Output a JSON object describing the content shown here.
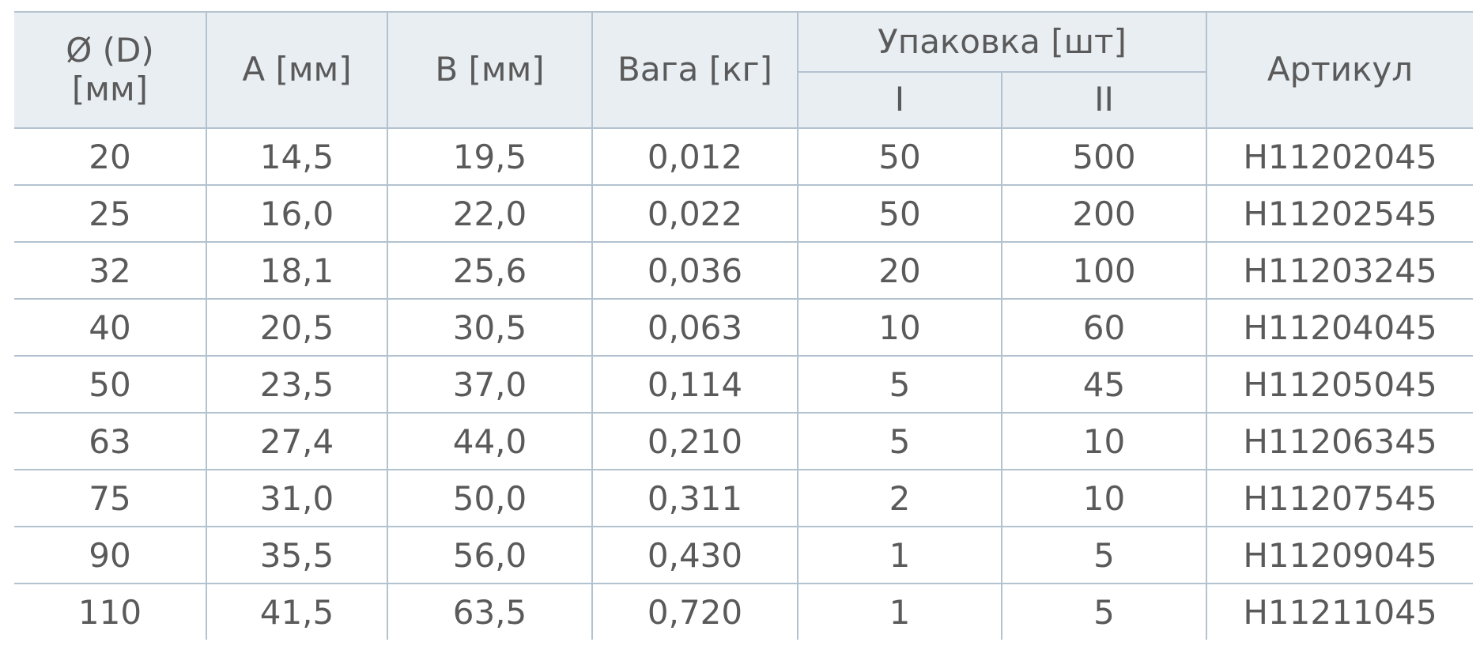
{
  "table": {
    "header": {
      "diameter": "Ø (D)\n[мм]",
      "a": "A [мм]",
      "b": "B [мм]",
      "weight": "Вага [кг]",
      "package": "Упаковка [шт]",
      "package_1": "I",
      "package_2": "II",
      "article": "Артикул"
    },
    "rows": [
      [
        "20",
        "14,5",
        "19,5",
        "0,012",
        "50",
        "500",
        "H11202045"
      ],
      [
        "25",
        "16,0",
        "22,0",
        "0,022",
        "50",
        "200",
        "H11202545"
      ],
      [
        "32",
        "18,1",
        "25,6",
        "0,036",
        "20",
        "100",
        "H11203245"
      ],
      [
        "40",
        "20,5",
        "30,5",
        "0,063",
        "10",
        "60",
        "H11204045"
      ],
      [
        "50",
        "23,5",
        "37,0",
        "0,114",
        "5",
        "45",
        "H11205045"
      ],
      [
        "63",
        "27,4",
        "44,0",
        "0,210",
        "5",
        "10",
        "H11206345"
      ],
      [
        "75",
        "31,0",
        "50,0",
        "0,311",
        "2",
        "10",
        "H11207545"
      ],
      [
        "90",
        "35,5",
        "56,0",
        "0,430",
        "1",
        "5",
        "H11209045"
      ],
      [
        "110",
        "41,5",
        "63,5",
        "0,720",
        "1",
        "5",
        "H11211045"
      ]
    ]
  }
}
